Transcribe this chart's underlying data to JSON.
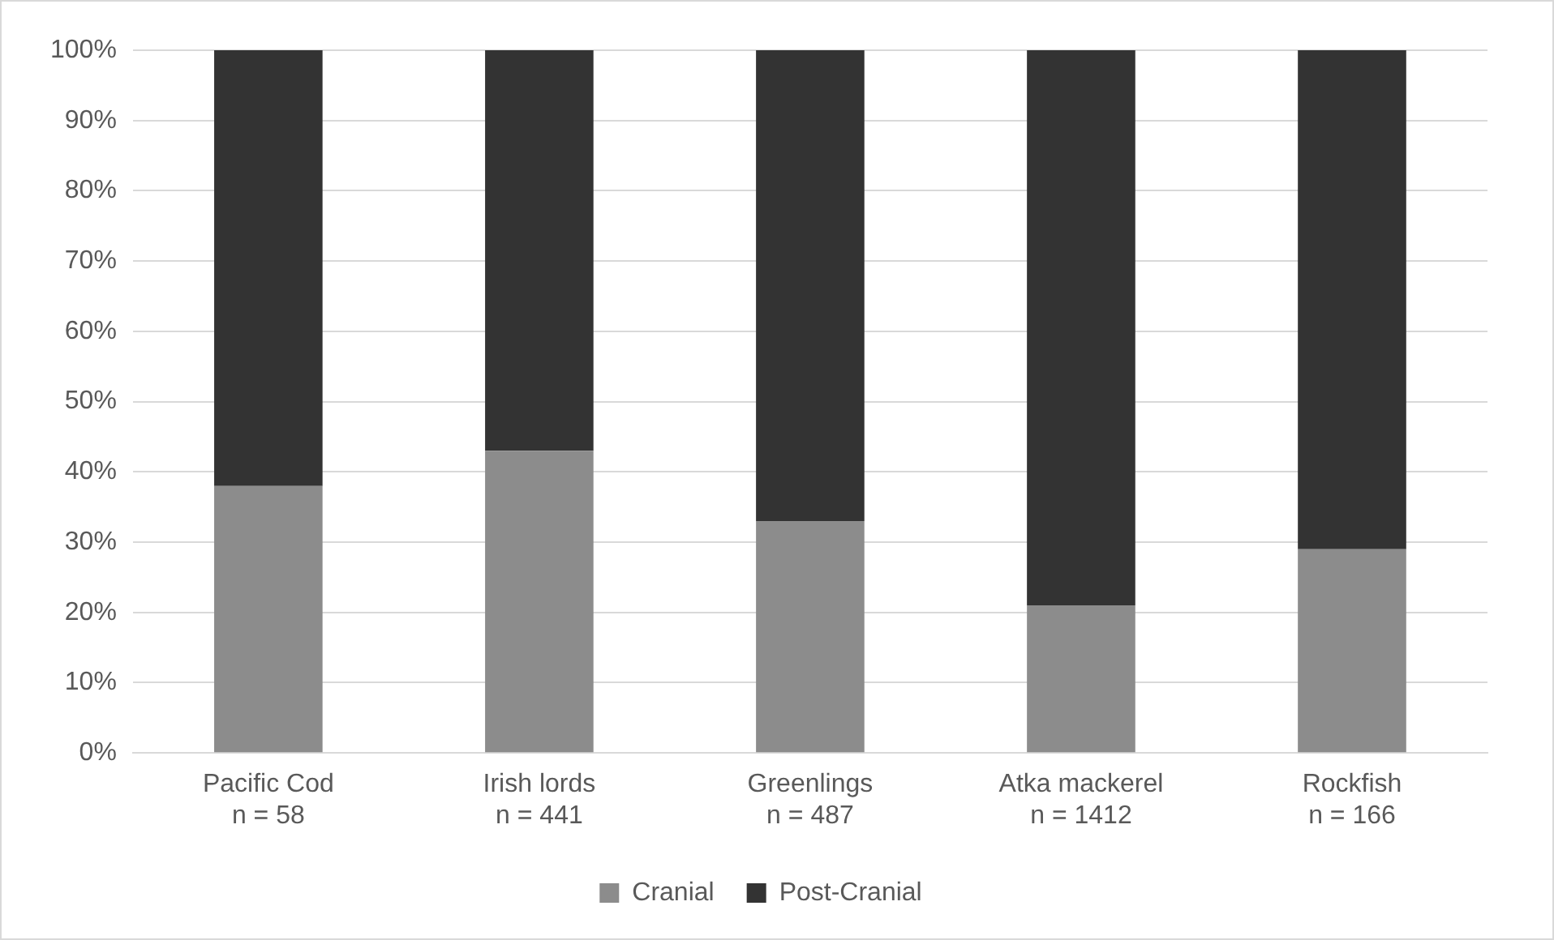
{
  "chart_data": {
    "type": "bar",
    "stacked": true,
    "categories": [
      "Pacific Cod\nn = 58",
      "Irish lords\nn = 441",
      "Greenlings\nn = 487",
      "Atka mackerel\nn = 1412",
      "Rockfish\nn = 166"
    ],
    "series": [
      {
        "name": "Cranial",
        "color": "#8c8c8c",
        "values": [
          38,
          43,
          33,
          21,
          29
        ]
      },
      {
        "name": "Post-Cranial",
        "color": "#333333",
        "values": [
          62,
          57,
          67,
          79,
          71
        ]
      }
    ],
    "ylim": [
      0,
      100
    ],
    "yticks": [
      {
        "value": 0,
        "label": "0%"
      },
      {
        "value": 10,
        "label": "10%"
      },
      {
        "value": 20,
        "label": "20%"
      },
      {
        "value": 30,
        "label": "30%"
      },
      {
        "value": 40,
        "label": "40%"
      },
      {
        "value": 50,
        "label": "50%"
      },
      {
        "value": 60,
        "label": "60%"
      },
      {
        "value": 70,
        "label": "70%"
      },
      {
        "value": 80,
        "label": "80%"
      },
      {
        "value": 90,
        "label": "90%"
      },
      {
        "value": 100,
        "label": "100%"
      }
    ],
    "grid": "y",
    "legend": "bottom"
  }
}
